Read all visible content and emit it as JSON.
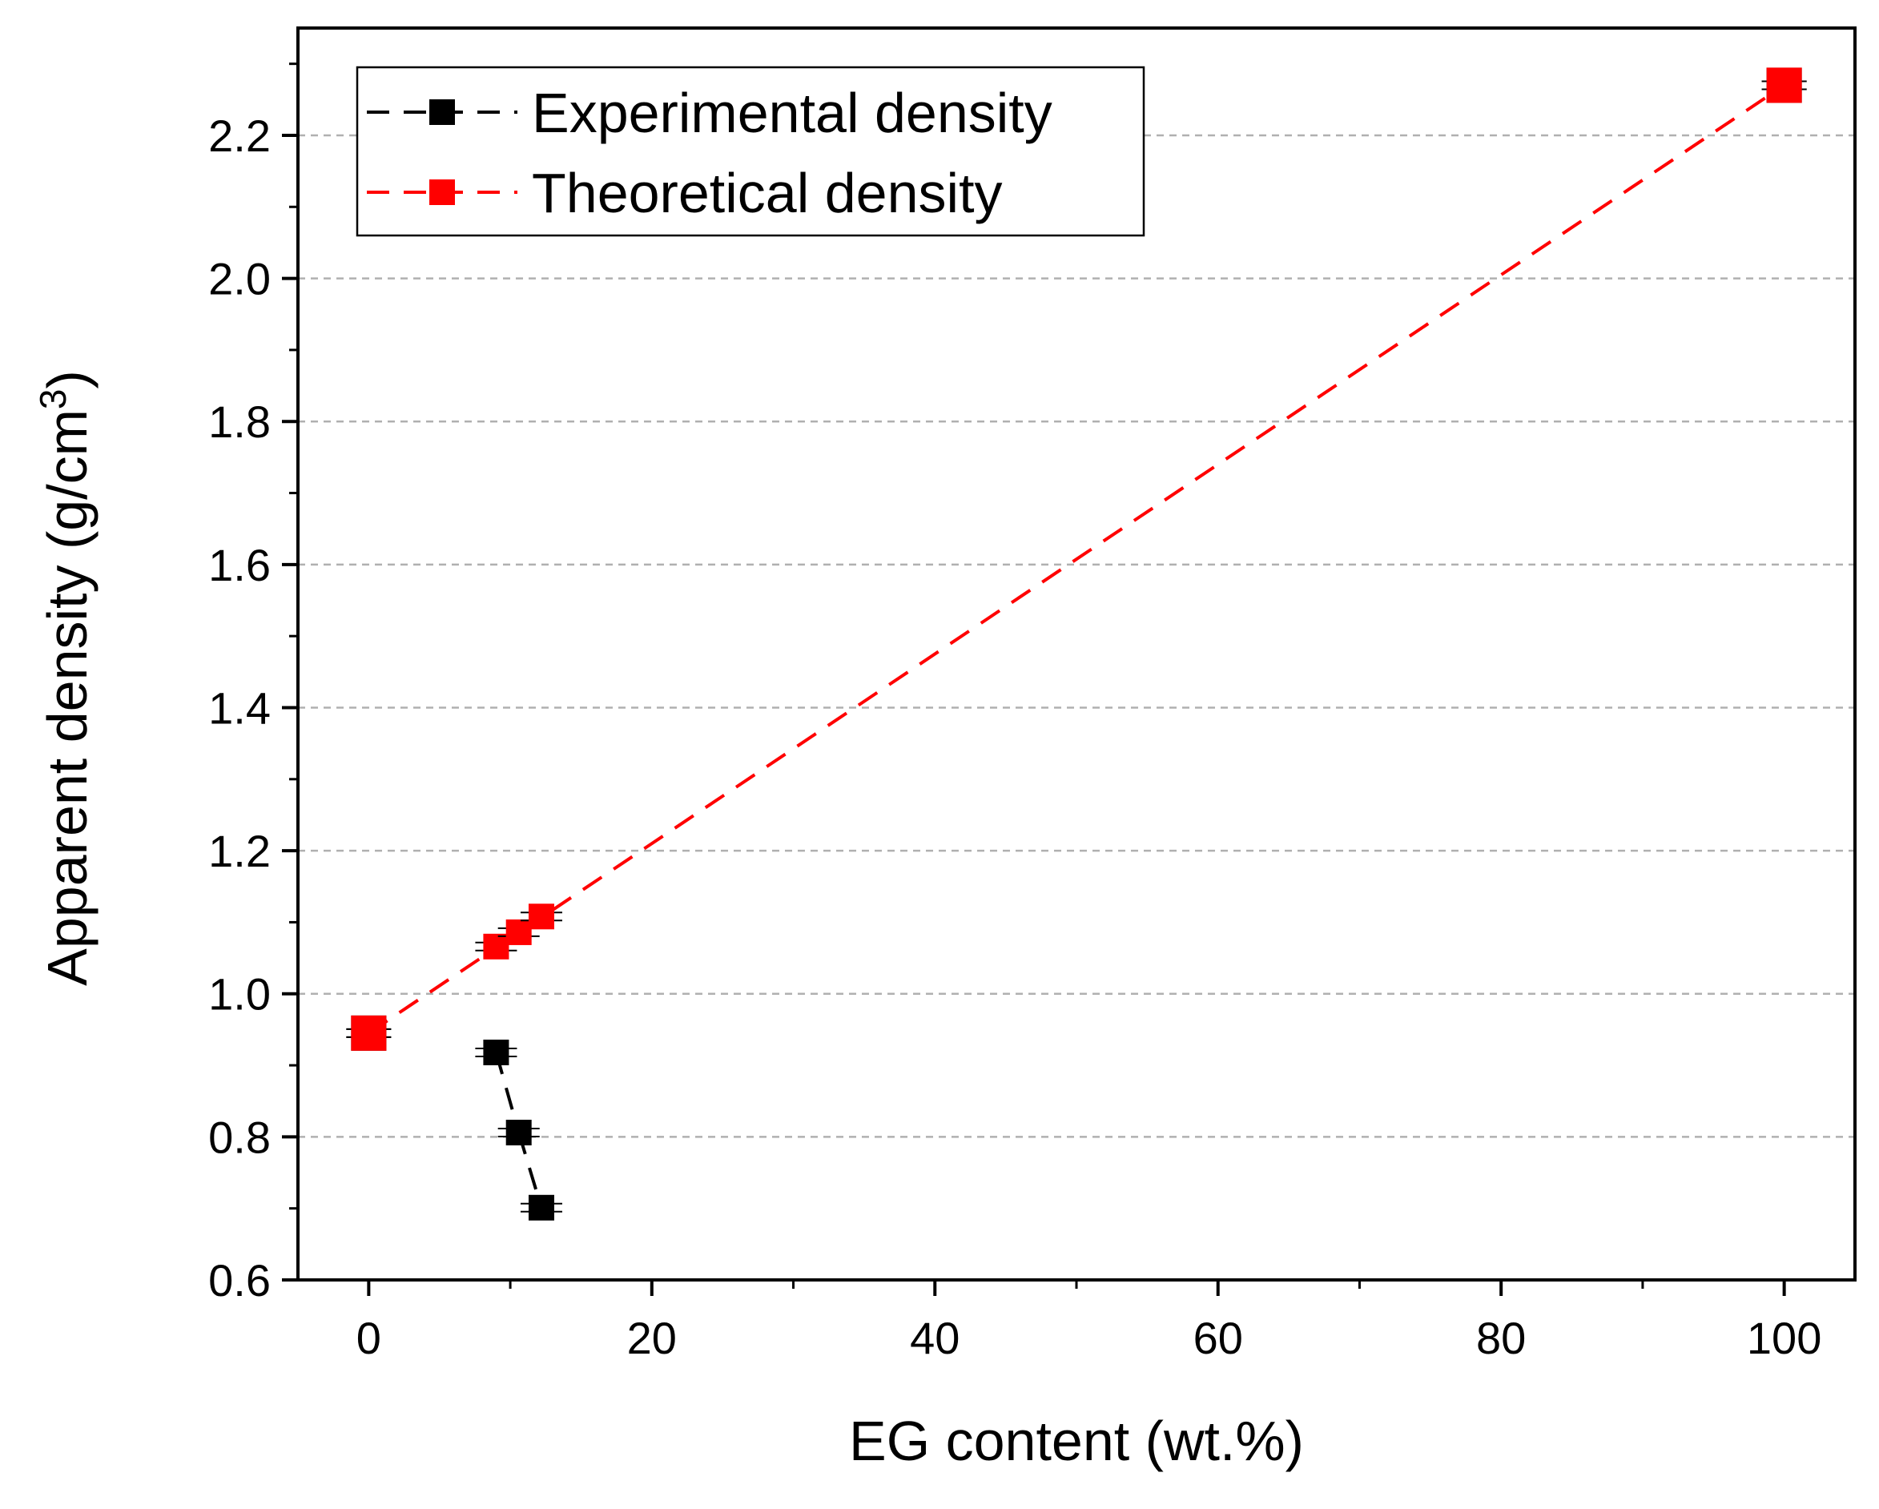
{
  "chart_data": {
    "type": "scatter",
    "title": "",
    "xlabel": "EG content (wt.%)",
    "ylabel_main": "Apparent density (g/cm",
    "ylabel_sup": "3",
    "ylabel_close": ")",
    "xlim": [
      -5,
      105
    ],
    "ylim": [
      0.6,
      2.35
    ],
    "xticks": [
      0,
      20,
      40,
      60,
      80,
      100
    ],
    "xtick_labels": [
      "0",
      "20",
      "40",
      "60",
      "80",
      "100"
    ],
    "xminor": [
      10,
      30,
      50,
      70,
      90
    ],
    "yticks": [
      0.6,
      0.8,
      1.0,
      1.2,
      1.4,
      1.6,
      1.8,
      2.0,
      2.2
    ],
    "ytick_labels": [
      "0.6",
      "0.8",
      "1.0",
      "1.2",
      "1.4",
      "1.6",
      "1.8",
      "2.0",
      "2.2"
    ],
    "yminor": [
      0.7,
      0.9,
      1.1,
      1.3,
      1.5,
      1.7,
      1.9,
      2.1,
      2.3
    ],
    "grid_y": [
      0.8,
      1.0,
      1.2,
      1.4,
      1.6,
      1.8,
      2.0,
      2.2
    ],
    "legend_position": "top-left",
    "series": [
      {
        "name": "Experimental density",
        "color": "#000000",
        "line_style": "dashed",
        "x": [
          0,
          9,
          10.6,
          12.2,
          100
        ],
        "y": [
          0.945,
          0.918,
          0.806,
          0.701,
          2.27
        ],
        "connect": [
          [
            1,
            2
          ],
          [
            2,
            3
          ]
        ]
      },
      {
        "name": "Theoretical density",
        "color": "#ff0000",
        "line_style": "dashed",
        "x": [
          0,
          9,
          10.6,
          12.2,
          100
        ],
        "y": [
          0.945,
          1.066,
          1.086,
          1.108,
          2.27
        ],
        "connect": [
          [
            0,
            4
          ]
        ]
      }
    ]
  }
}
